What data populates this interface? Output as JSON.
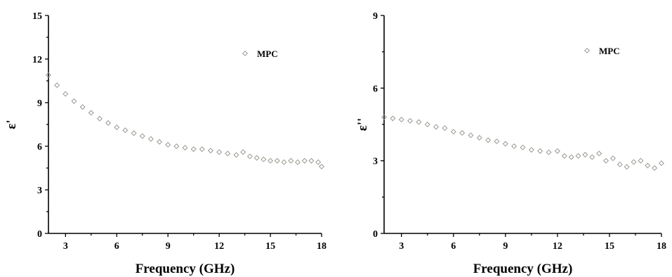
{
  "chart_data": [
    {
      "type": "scatter",
      "xlabel": "Frequency (GHz)",
      "ylabel": "ε'",
      "xlim": [
        2,
        18
      ],
      "ylim": [
        0,
        15
      ],
      "xticks": [
        3,
        6,
        9,
        12,
        15,
        18
      ],
      "yticks": [
        0,
        3,
        6,
        9,
        12,
        15
      ],
      "grid": false,
      "legend_position": "top-right",
      "series": [
        {
          "name": "MPC",
          "marker": "diamond-open",
          "color": "#8e8e86",
          "x": [
            2.0,
            2.5,
            3.0,
            3.5,
            4.0,
            4.5,
            5.0,
            5.5,
            6.0,
            6.5,
            7.0,
            7.5,
            8.0,
            8.5,
            9.0,
            9.5,
            10.0,
            10.5,
            11.0,
            11.5,
            12.0,
            12.5,
            13.0,
            13.4,
            13.8,
            14.2,
            14.6,
            15.0,
            15.4,
            15.8,
            16.2,
            16.6,
            17.0,
            17.4,
            17.8,
            18.0
          ],
          "y": [
            10.9,
            10.2,
            9.6,
            9.1,
            8.7,
            8.3,
            7.9,
            7.6,
            7.3,
            7.1,
            6.9,
            6.7,
            6.5,
            6.3,
            6.1,
            6.0,
            5.9,
            5.8,
            5.8,
            5.7,
            5.6,
            5.5,
            5.4,
            5.6,
            5.3,
            5.2,
            5.1,
            5.0,
            5.0,
            4.9,
            5.0,
            4.9,
            5.0,
            5.0,
            4.9,
            4.6
          ]
        }
      ]
    },
    {
      "type": "scatter",
      "xlabel": "Frequency (GHz)",
      "ylabel": "ε''",
      "xlim": [
        2,
        18
      ],
      "ylim": [
        0,
        9
      ],
      "xticks": [
        3,
        6,
        9,
        12,
        15,
        18
      ],
      "yticks": [
        0,
        3,
        6,
        9
      ],
      "grid": false,
      "legend_position": "top-right",
      "series": [
        {
          "name": "MPC",
          "marker": "diamond-open",
          "color": "#8e8e86",
          "x": [
            2.0,
            2.5,
            3.0,
            3.5,
            4.0,
            4.5,
            5.0,
            5.5,
            6.0,
            6.5,
            7.0,
            7.5,
            8.0,
            8.5,
            9.0,
            9.5,
            10.0,
            10.5,
            11.0,
            11.5,
            12.0,
            12.4,
            12.8,
            13.2,
            13.6,
            14.0,
            14.4,
            14.8,
            15.2,
            15.6,
            16.0,
            16.4,
            16.8,
            17.2,
            17.6,
            18.0
          ],
          "y": [
            4.8,
            4.75,
            4.7,
            4.65,
            4.6,
            4.5,
            4.4,
            4.35,
            4.2,
            4.15,
            4.05,
            3.95,
            3.85,
            3.8,
            3.7,
            3.6,
            3.55,
            3.45,
            3.4,
            3.35,
            3.4,
            3.2,
            3.15,
            3.2,
            3.25,
            3.15,
            3.3,
            3.0,
            3.1,
            2.85,
            2.75,
            2.95,
            3.0,
            2.8,
            2.7,
            2.9
          ]
        }
      ]
    }
  ]
}
